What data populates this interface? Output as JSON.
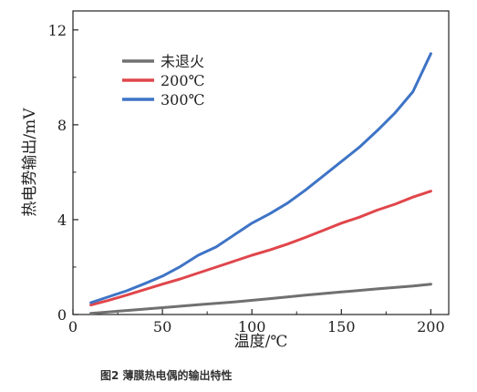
{
  "chart_data": {
    "type": "line",
    "title": "",
    "xlabel": "温度/℃",
    "ylabel": "热电势输出/mV",
    "xlim": [
      0,
      210
    ],
    "ylim": [
      0,
      12.8
    ],
    "xticks": [
      0,
      50,
      100,
      150,
      200
    ],
    "yticks": [
      0,
      4,
      8,
      12
    ],
    "grid": false,
    "legend_position": "top-left",
    "series": [
      {
        "name": "未退火",
        "color": "#707070",
        "x": [
          10,
          30,
          50,
          70,
          90,
          110,
          130,
          150,
          170,
          190,
          200
        ],
        "y": [
          0.05,
          0.17,
          0.29,
          0.41,
          0.53,
          0.67,
          0.82,
          0.95,
          1.08,
          1.2,
          1.28
        ]
      },
      {
        "name": "200℃",
        "color": "#e0464b",
        "x": [
          10,
          20,
          30,
          40,
          50,
          60,
          70,
          80,
          90,
          100,
          110,
          120,
          130,
          140,
          150,
          160,
          170,
          180,
          190,
          200
        ],
        "y": [
          0.4,
          0.6,
          0.82,
          1.05,
          1.28,
          1.5,
          1.75,
          2.0,
          2.25,
          2.5,
          2.72,
          2.97,
          3.25,
          3.55,
          3.85,
          4.1,
          4.4,
          4.65,
          4.95,
          5.2
        ]
      },
      {
        "name": "300℃",
        "color": "#3e74c6",
        "x": [
          10,
          20,
          30,
          40,
          50,
          60,
          70,
          80,
          90,
          100,
          110,
          120,
          130,
          140,
          150,
          160,
          170,
          180,
          190,
          200
        ],
        "y": [
          0.5,
          0.75,
          1.0,
          1.3,
          1.62,
          2.02,
          2.5,
          2.85,
          3.35,
          3.85,
          4.25,
          4.7,
          5.25,
          5.85,
          6.45,
          7.05,
          7.75,
          8.5,
          9.4,
          11.0
        ]
      }
    ]
  },
  "caption": "图2 薄膜热电偶的输出特性"
}
